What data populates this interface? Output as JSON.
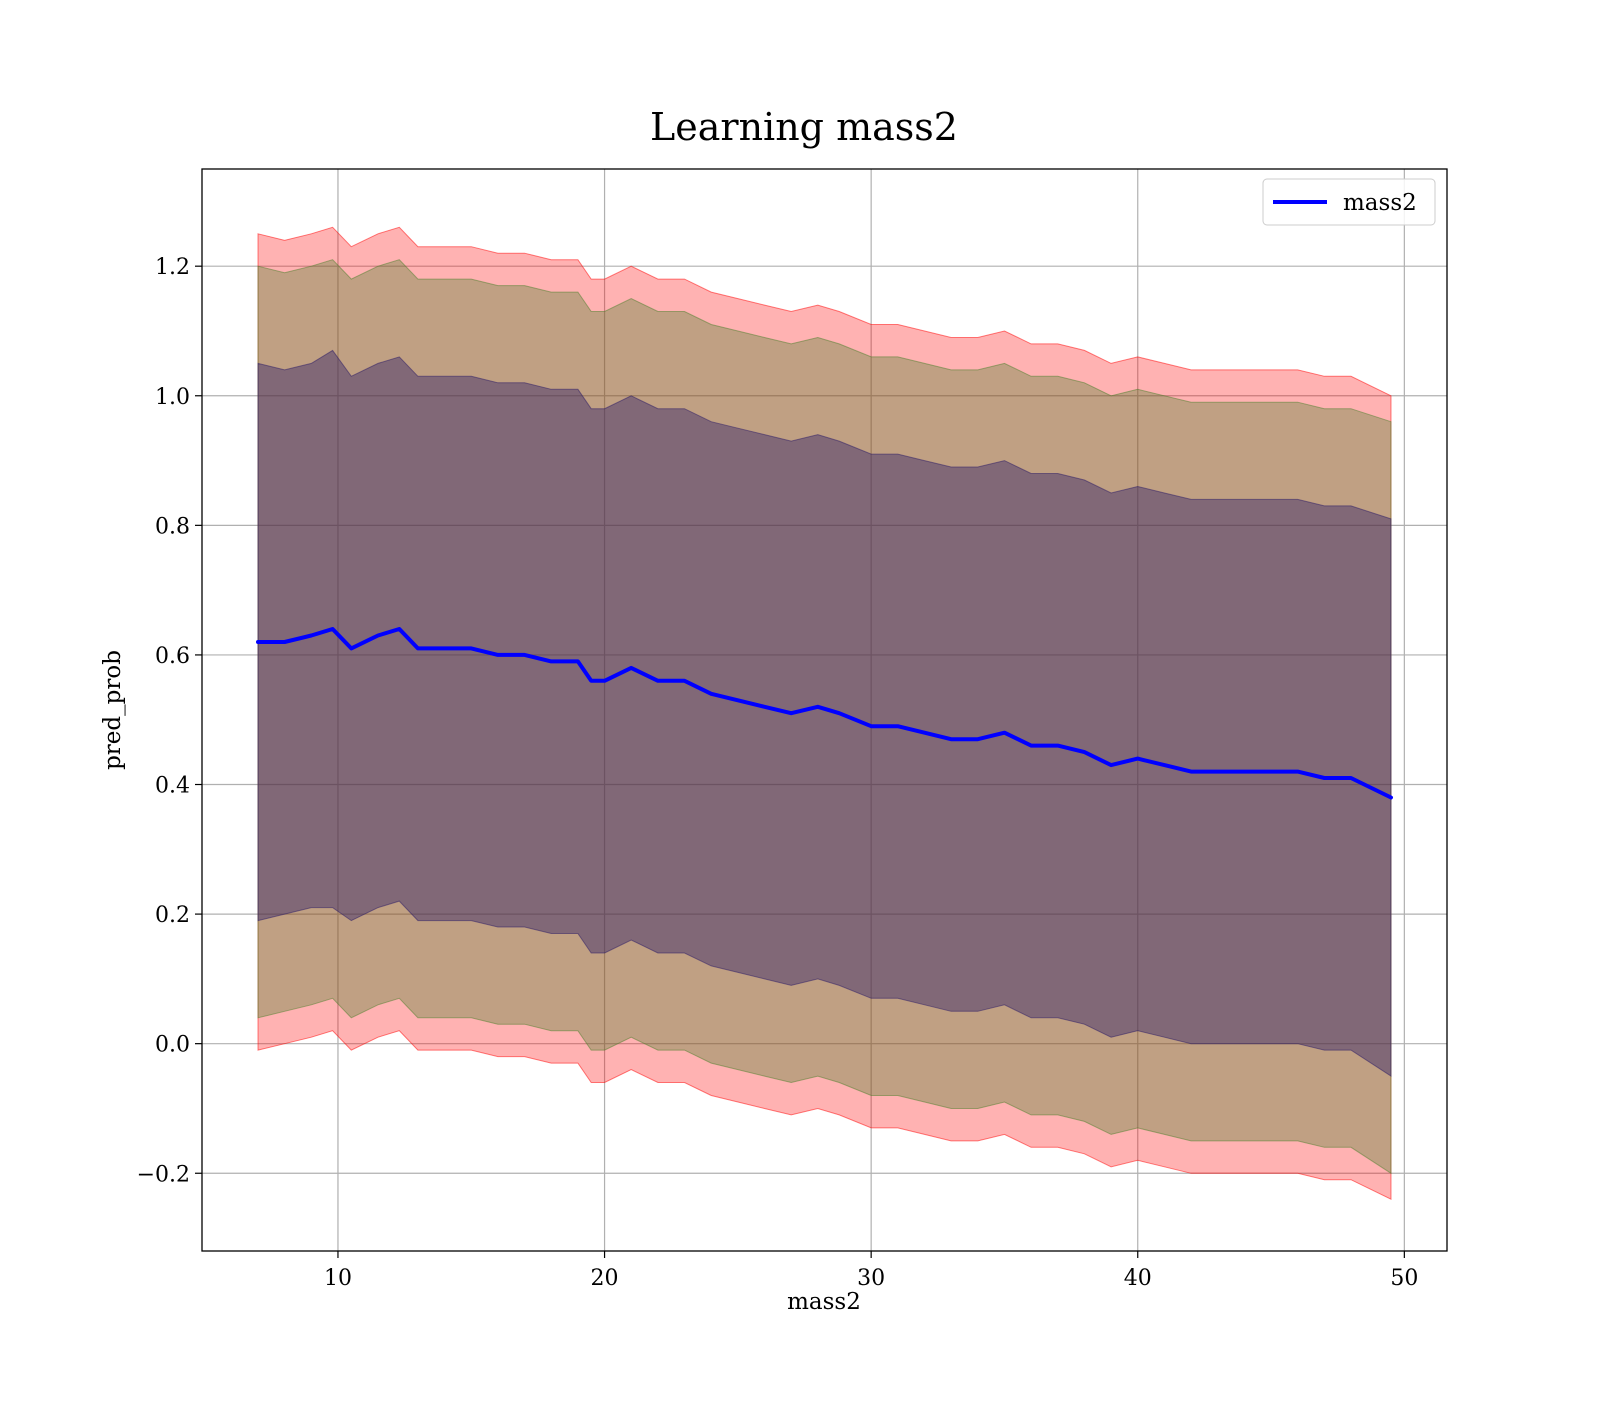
{
  "chart_data": {
    "type": "area",
    "title": "Learning mass2",
    "xlabel": "mass2",
    "ylabel": "pred_prob",
    "xlim": [
      4.9,
      51.6
    ],
    "ylim": [
      -0.32,
      1.35
    ],
    "xticks": [
      10,
      20,
      30,
      40,
      50
    ],
    "xtick_labels": [
      "10",
      "20",
      "30",
      "40",
      "50"
    ],
    "yticks": [
      -0.2,
      0.0,
      0.2,
      0.4,
      0.6,
      0.8,
      1.0,
      1.2
    ],
    "ytick_labels": [
      "−0.2",
      "0.0",
      "0.2",
      "0.4",
      "0.6",
      "0.8",
      "1.0",
      "1.2"
    ],
    "grid": true,
    "legend": {
      "position": "top-right",
      "entries": [
        "mass2"
      ]
    },
    "x": [
      7.0,
      8.0,
      9.0,
      9.8,
      10.5,
      11.5,
      12.3,
      13.0,
      14.0,
      15.0,
      16.0,
      17.0,
      18.0,
      19.0,
      19.5,
      20.0,
      21.0,
      22.0,
      23.0,
      24.0,
      25.0,
      26.0,
      27.0,
      28.0,
      28.8,
      30.0,
      31.0,
      32.0,
      33.0,
      34.0,
      35.0,
      36.0,
      37.0,
      38.0,
      39.0,
      40.0,
      41.0,
      42.0,
      43.0,
      44.0,
      45.0,
      46.0,
      47.0,
      48.0,
      49.5
    ],
    "series": [
      {
        "name": "mass2",
        "color": "#0000ff",
        "values": [
          0.62,
          0.62,
          0.63,
          0.64,
          0.61,
          0.63,
          0.64,
          0.61,
          0.61,
          0.61,
          0.6,
          0.6,
          0.59,
          0.59,
          0.56,
          0.56,
          0.58,
          0.56,
          0.56,
          0.54,
          0.53,
          0.52,
          0.51,
          0.52,
          0.51,
          0.49,
          0.49,
          0.48,
          0.47,
          0.47,
          0.48,
          0.46,
          0.46,
          0.45,
          0.43,
          0.44,
          0.43,
          0.42,
          0.42,
          0.42,
          0.42,
          0.42,
          0.41,
          0.41,
          0.38
        ]
      }
    ],
    "bands": [
      {
        "color": "#ff0000",
        "opacity": 0.3,
        "upper": [
          1.25,
          1.24,
          1.25,
          1.26,
          1.23,
          1.25,
          1.26,
          1.23,
          1.23,
          1.23,
          1.22,
          1.22,
          1.21,
          1.21,
          1.18,
          1.18,
          1.2,
          1.18,
          1.18,
          1.16,
          1.15,
          1.14,
          1.13,
          1.14,
          1.13,
          1.11,
          1.11,
          1.1,
          1.09,
          1.09,
          1.1,
          1.08,
          1.08,
          1.07,
          1.05,
          1.06,
          1.05,
          1.04,
          1.04,
          1.04,
          1.04,
          1.04,
          1.03,
          1.03,
          1.0
        ],
        "lower": [
          -0.01,
          0.0,
          0.01,
          0.02,
          -0.01,
          0.01,
          0.02,
          -0.01,
          -0.01,
          -0.01,
          -0.02,
          -0.02,
          -0.03,
          -0.03,
          -0.06,
          -0.06,
          -0.04,
          -0.06,
          -0.06,
          -0.08,
          -0.09,
          -0.1,
          -0.11,
          -0.1,
          -0.11,
          -0.13,
          -0.13,
          -0.14,
          -0.15,
          -0.15,
          -0.14,
          -0.16,
          -0.16,
          -0.17,
          -0.19,
          -0.18,
          -0.19,
          -0.2,
          -0.2,
          -0.2,
          -0.2,
          -0.2,
          -0.21,
          -0.21,
          -0.24
        ]
      },
      {
        "color": "#4b7f2b",
        "opacity": 0.35,
        "upper": [
          1.2,
          1.19,
          1.2,
          1.21,
          1.18,
          1.2,
          1.21,
          1.18,
          1.18,
          1.18,
          1.17,
          1.17,
          1.16,
          1.16,
          1.13,
          1.13,
          1.15,
          1.13,
          1.13,
          1.11,
          1.1,
          1.09,
          1.08,
          1.09,
          1.08,
          1.06,
          1.06,
          1.05,
          1.04,
          1.04,
          1.05,
          1.03,
          1.03,
          1.02,
          1.0,
          1.01,
          1.0,
          0.99,
          0.99,
          0.99,
          0.99,
          0.99,
          0.98,
          0.98,
          0.96
        ],
        "lower": [
          0.04,
          0.05,
          0.06,
          0.07,
          0.04,
          0.06,
          0.07,
          0.04,
          0.04,
          0.04,
          0.03,
          0.03,
          0.02,
          0.02,
          -0.01,
          -0.01,
          0.01,
          -0.01,
          -0.01,
          -0.03,
          -0.04,
          -0.05,
          -0.06,
          -0.05,
          -0.06,
          -0.08,
          -0.08,
          -0.09,
          -0.1,
          -0.1,
          -0.09,
          -0.11,
          -0.11,
          -0.12,
          -0.14,
          -0.13,
          -0.14,
          -0.15,
          -0.15,
          -0.15,
          -0.15,
          -0.15,
          -0.16,
          -0.16,
          -0.2
        ]
      },
      {
        "color": "#2a1a66",
        "opacity": 0.42,
        "upper": [
          1.05,
          1.04,
          1.05,
          1.07,
          1.03,
          1.05,
          1.06,
          1.03,
          1.03,
          1.03,
          1.02,
          1.02,
          1.01,
          1.01,
          0.98,
          0.98,
          1.0,
          0.98,
          0.98,
          0.96,
          0.95,
          0.94,
          0.93,
          0.94,
          0.93,
          0.91,
          0.91,
          0.9,
          0.89,
          0.89,
          0.9,
          0.88,
          0.88,
          0.87,
          0.85,
          0.86,
          0.85,
          0.84,
          0.84,
          0.84,
          0.84,
          0.84,
          0.83,
          0.83,
          0.81
        ],
        "lower": [
          0.19,
          0.2,
          0.21,
          0.21,
          0.19,
          0.21,
          0.22,
          0.19,
          0.19,
          0.19,
          0.18,
          0.18,
          0.17,
          0.17,
          0.14,
          0.14,
          0.16,
          0.14,
          0.14,
          0.12,
          0.11,
          0.1,
          0.09,
          0.1,
          0.09,
          0.07,
          0.07,
          0.06,
          0.05,
          0.05,
          0.06,
          0.04,
          0.04,
          0.03,
          0.01,
          0.02,
          0.01,
          0.0,
          0.0,
          0.0,
          0.0,
          0.0,
          -0.01,
          -0.01,
          -0.05
        ]
      }
    ]
  }
}
